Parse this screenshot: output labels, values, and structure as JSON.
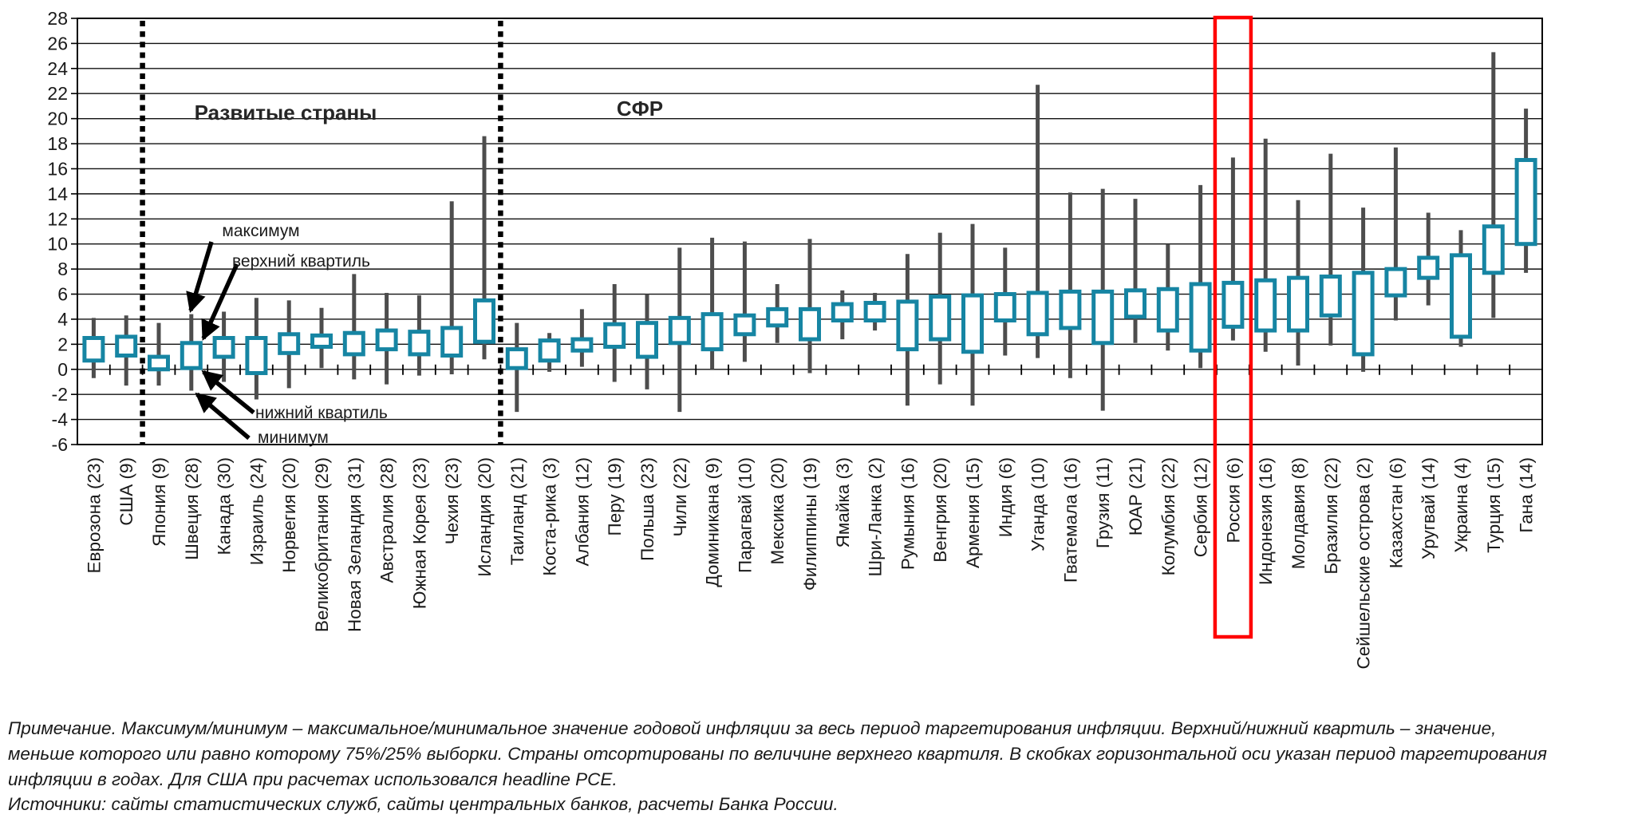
{
  "section_labels": {
    "developed": "Развитые страны",
    "eme": "СФР"
  },
  "annotations": {
    "maximum": "максимум",
    "upper_quartile": "верхний квартиль",
    "lower_quartile": "нижний квартиль",
    "minimum": "минимум"
  },
  "footnote": {
    "lines": [
      "Примечание. Максимум/минимум – максимальное/минимальное значение годовой инфляции за весь период таргетирования инфляции. Верхний/нижний квартиль – значение,",
      "меньше которого или равно которому 75%/25% выборки. Страны отсортированы по величине верхнего квартиля. В скобках горизонтальной оси указан период таргетирования",
      "инфляции в годах. Для США при расчетах использовался headline PCE.",
      "Источники: сайты статистических служб, сайты центральных банков, расчеты Банка России."
    ]
  },
  "colors": {
    "box": "#1685A3",
    "whisker": "#4D4D4D",
    "grid": "#111111",
    "highlight": "#FF0000",
    "text": "#1a1a1a"
  },
  "chart_data": {
    "type": "boxplot",
    "title": "",
    "xlabel": "",
    "ylabel": "",
    "ylim": [
      -6,
      28
    ],
    "ytick_step": 2,
    "grid": true,
    "separator_boundaries": [
      2,
      13
    ],
    "highlight_index": 35,
    "categories": [
      {
        "label": "Еврозона (23)",
        "min": -0.7,
        "q1": 0.7,
        "q3": 2.5,
        "max": 4.1
      },
      {
        "label": "США (9)",
        "min": -1.3,
        "q1": 1.1,
        "q3": 2.6,
        "max": 4.3
      },
      {
        "label": "Япония (9)",
        "min": -1.3,
        "q1": 0.0,
        "q3": 1.0,
        "max": 3.7
      },
      {
        "label": "Швеция (28)",
        "min": -1.7,
        "q1": 0.1,
        "q3": 2.1,
        "max": 4.4
      },
      {
        "label": "Канада (30)",
        "min": -1.0,
        "q1": 1.0,
        "q3": 2.5,
        "max": 4.6
      },
      {
        "label": "Израиль (24)",
        "min": -2.4,
        "q1": -0.3,
        "q3": 2.5,
        "max": 5.7
      },
      {
        "label": "Норвегия (20)",
        "min": -1.5,
        "q1": 1.3,
        "q3": 2.8,
        "max": 5.5
      },
      {
        "label": "Великобритания (29)",
        "min": 0.1,
        "q1": 1.8,
        "q3": 2.7,
        "max": 4.9
      },
      {
        "label": "Новая Зеландия (31)",
        "min": -0.8,
        "q1": 1.2,
        "q3": 2.9,
        "max": 7.6
      },
      {
        "label": "Австралия (28)",
        "min": -1.2,
        "q1": 1.6,
        "q3": 3.1,
        "max": 6.1
      },
      {
        "label": "Южная Корея (23)",
        "min": -0.5,
        "q1": 1.2,
        "q3": 3.0,
        "max": 5.9
      },
      {
        "label": "Чехия (23)",
        "min": -0.4,
        "q1": 1.1,
        "q3": 3.3,
        "max": 13.4
      },
      {
        "label": "Исландия (20)",
        "min": 0.8,
        "q1": 2.2,
        "q3": 5.5,
        "max": 18.6
      },
      {
        "label": "Таиланд (21)",
        "min": -3.4,
        "q1": 0.1,
        "q3": 1.6,
        "max": 3.7
      },
      {
        "label": "Коста-рика (3)",
        "min": -0.2,
        "q1": 0.7,
        "q3": 2.3,
        "max": 2.9
      },
      {
        "label": "Албания (12)",
        "min": 0.2,
        "q1": 1.5,
        "q3": 2.4,
        "max": 4.8
      },
      {
        "label": "Перу (19)",
        "min": -1.0,
        "q1": 1.8,
        "q3": 3.6,
        "max": 6.8
      },
      {
        "label": "Польша (23)",
        "min": -1.6,
        "q1": 1.0,
        "q3": 3.7,
        "max": 6.0
      },
      {
        "label": "Чили (22)",
        "min": -3.4,
        "q1": 2.1,
        "q3": 4.1,
        "max": 9.7
      },
      {
        "label": "Доминикана (9)",
        "min": 0.0,
        "q1": 1.6,
        "q3": 4.4,
        "max": 10.5
      },
      {
        "label": "Парагвай (10)",
        "min": 0.6,
        "q1": 2.8,
        "q3": 4.3,
        "max": 10.2
      },
      {
        "label": "Мексика (20)",
        "min": 2.1,
        "q1": 3.5,
        "q3": 4.8,
        "max": 6.8
      },
      {
        "label": "Филиппины (19)",
        "min": -0.3,
        "q1": 2.4,
        "q3": 4.8,
        "max": 10.4
      },
      {
        "label": "Ямайка (3)",
        "min": 2.4,
        "q1": 3.9,
        "q3": 5.2,
        "max": 6.3
      },
      {
        "label": "Шри-Ланка (2)",
        "min": 3.1,
        "q1": 3.9,
        "q3": 5.3,
        "max": 6.1
      },
      {
        "label": "Румыния (16)",
        "min": -2.9,
        "q1": 1.6,
        "q3": 5.4,
        "max": 9.2
      },
      {
        "label": "Венгрия (20)",
        "min": -1.2,
        "q1": 2.4,
        "q3": 5.8,
        "max": 10.9
      },
      {
        "label": "Армения (15)",
        "min": -2.9,
        "q1": 1.4,
        "q3": 5.9,
        "max": 11.6
      },
      {
        "label": "Индия (6)",
        "min": 1.1,
        "q1": 3.9,
        "q3": 6.0,
        "max": 9.7
      },
      {
        "label": "Уганда (10)",
        "min": 0.9,
        "q1": 2.8,
        "q3": 6.1,
        "max": 22.7
      },
      {
        "label": "Гватемала (16)",
        "min": -0.7,
        "q1": 3.3,
        "q3": 6.2,
        "max": 14.1
      },
      {
        "label": "Грузия (11)",
        "min": -3.3,
        "q1": 2.1,
        "q3": 6.2,
        "max": 14.4
      },
      {
        "label": "ЮАР (21)",
        "min": 2.1,
        "q1": 4.2,
        "q3": 6.3,
        "max": 13.6
      },
      {
        "label": "Колумбия (22)",
        "min": 1.5,
        "q1": 3.1,
        "q3": 6.4,
        "max": 10.0
      },
      {
        "label": "Сербия (12)",
        "min": 0.1,
        "q1": 1.5,
        "q3": 6.8,
        "max": 14.7
      },
      {
        "label": "Россия (6)",
        "min": 2.3,
        "q1": 3.4,
        "q3": 6.9,
        "max": 16.9
      },
      {
        "label": "Индонезия (16)",
        "min": 1.4,
        "q1": 3.1,
        "q3": 7.1,
        "max": 18.4
      },
      {
        "label": "Молдавия (8)",
        "min": 0.3,
        "q1": 3.1,
        "q3": 7.3,
        "max": 13.5
      },
      {
        "label": "Бразилия (22)",
        "min": 1.9,
        "q1": 4.3,
        "q3": 7.4,
        "max": 17.2
      },
      {
        "label": "Сейшельские острова (2)",
        "min": -0.2,
        "q1": 1.2,
        "q3": 7.7,
        "max": 12.9
      },
      {
        "label": "Казахстан (6)",
        "min": 3.9,
        "q1": 5.9,
        "q3": 8.0,
        "max": 17.7
      },
      {
        "label": "Уругвай (14)",
        "min": 5.1,
        "q1": 7.3,
        "q3": 8.9,
        "max": 12.5
      },
      {
        "label": "Украина (4)",
        "min": 1.8,
        "q1": 2.6,
        "q3": 9.1,
        "max": 11.1
      },
      {
        "label": "Турция (15)",
        "min": 4.1,
        "q1": 7.7,
        "q3": 11.4,
        "max": 25.3
      },
      {
        "label": "Гана (14)",
        "min": 7.7,
        "q1": 10.0,
        "q3": 16.7,
        "max": 20.8
      }
    ]
  }
}
